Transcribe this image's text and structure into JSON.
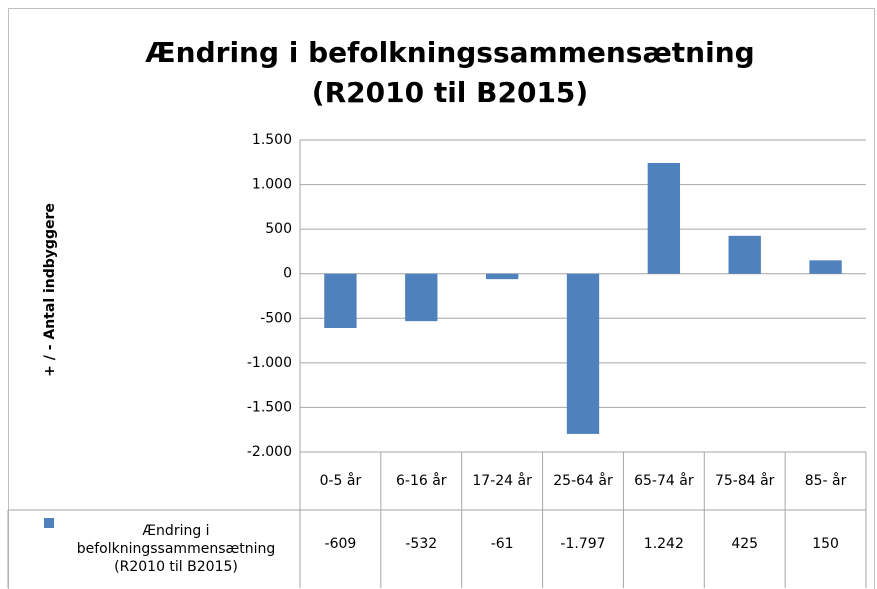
{
  "chart_data": {
    "type": "bar",
    "title": "Ændring i befolkningssammensætning (R2010 til B2015)",
    "y_label": "+ / -  Antal indbyggere",
    "categories": [
      "0-5 år",
      "6-16 år",
      "17-24 år",
      "25-64 år",
      "65-74 år",
      "75-84 år",
      "85- år"
    ],
    "series": [
      {
        "name": "Ændring i befolkningssammensætning (R2010 til B2015)",
        "color": "#4f81bd",
        "values": [
          -609,
          -532,
          -61,
          -1797,
          1242,
          425,
          150
        ],
        "value_labels": [
          "-609",
          "-532",
          "-61",
          "-1.797",
          "1.242",
          "425",
          "150"
        ]
      }
    ],
    "ylim": [
      -2000,
      1500
    ],
    "yticks": [
      {
        "value": -2000,
        "label": "-2.000"
      },
      {
        "value": -1500,
        "label": "-1.500"
      },
      {
        "value": -1000,
        "label": "-1.000"
      },
      -500,
      0,
      500,
      {
        "value": 1000,
        "label": "1.000"
      },
      {
        "value": 1500,
        "label": "1.500"
      }
    ],
    "grid": true
  }
}
